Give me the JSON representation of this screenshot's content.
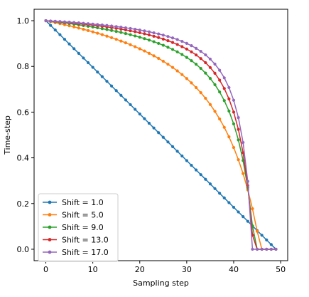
{
  "chart_data": {
    "type": "line",
    "title": "",
    "xlabel": "Sampling step",
    "ylabel": "Time-step",
    "xlim": [
      -2.5,
      51.5
    ],
    "ylim": [
      -0.05,
      1.05
    ],
    "x_ticks": [
      0,
      10,
      20,
      30,
      40,
      50
    ],
    "y_ticks": [
      0.0,
      0.2,
      0.4,
      0.6,
      0.8,
      1.0
    ],
    "x_tick_labels": [
      "0",
      "10",
      "20",
      "30",
      "40",
      "50"
    ],
    "y_tick_labels": [
      "0.0",
      "0.2",
      "0.4",
      "0.6",
      "0.8",
      "1.0"
    ],
    "grid": false,
    "legend_position": "lower-left",
    "x": [
      0,
      1,
      2,
      3,
      4,
      5,
      6,
      7,
      8,
      9,
      10,
      11,
      12,
      13,
      14,
      15,
      16,
      17,
      18,
      19,
      20,
      21,
      22,
      23,
      24,
      25,
      26,
      27,
      28,
      29,
      30,
      31,
      32,
      33,
      34,
      35,
      36,
      37,
      38,
      39,
      40,
      41,
      42,
      43,
      44,
      45,
      46,
      47,
      48,
      49
    ],
    "series": [
      {
        "name": "Shift = 1.0",
        "color": "#1f77b4",
        "values": [
          1.0,
          0.9796,
          0.9592,
          0.9388,
          0.9184,
          0.898,
          0.8776,
          0.8571,
          0.8367,
          0.8163,
          0.7959,
          0.7755,
          0.7551,
          0.7347,
          0.7143,
          0.6939,
          0.6735,
          0.6531,
          0.6327,
          0.6122,
          0.5918,
          0.5714,
          0.551,
          0.5306,
          0.5102,
          0.4898,
          0.4694,
          0.449,
          0.4286,
          0.4082,
          0.3878,
          0.3673,
          0.3469,
          0.3265,
          0.3061,
          0.2857,
          0.2653,
          0.2449,
          0.2245,
          0.2041,
          0.1837,
          0.1633,
          0.1429,
          0.1224,
          0.102,
          0.0816,
          0.0612,
          0.0408,
          0.0204,
          0.0
        ]
      },
      {
        "name": "Shift = 5.0",
        "color": "#ff7f0e",
        "values": [
          1.0,
          0.9959,
          0.9915,
          0.9871,
          0.9825,
          0.9778,
          0.9729,
          0.9677,
          0.9624,
          0.9569,
          0.9512,
          0.9452,
          0.9389,
          0.9324,
          0.9256,
          0.9185,
          0.911,
          0.9032,
          0.8949,
          0.8862,
          0.8771,
          0.8675,
          0.8572,
          0.8464,
          0.8349,
          0.8226,
          0.8095,
          0.7955,
          0.7805,
          0.7643,
          0.7469,
          0.7279,
          0.7073,
          0.6849,
          0.6604,
          0.6333,
          0.6034,
          0.5702,
          0.5333,
          0.4918,
          0.4451,
          0.3918,
          0.3309,
          0.2602,
          0.1774,
          0.0789,
          0.0,
          0.0,
          0.0,
          0.0
        ]
      },
      {
        "name": "Shift = 9.0",
        "color": "#2ca02c",
        "values": [
          1.0,
          0.9977,
          0.9953,
          0.9928,
          0.9902,
          0.9876,
          0.9848,
          0.9818,
          0.9788,
          0.9756,
          0.9723,
          0.9688,
          0.9652,
          0.9613,
          0.9573,
          0.9531,
          0.9486,
          0.9438,
          0.9388,
          0.9334,
          0.9277,
          0.9216,
          0.9151,
          0.9081,
          0.9006,
          0.8925,
          0.8837,
          0.8741,
          0.8636,
          0.8521,
          0.8393,
          0.8251,
          0.8092,
          0.7912,
          0.7708,
          0.7474,
          0.7202,
          0.6883,
          0.6503,
          0.6046,
          0.5484,
          0.4783,
          0.3883,
          0.2691,
          0.1021,
          0.0,
          0.0,
          0.0,
          0.0,
          0.0
        ]
      },
      {
        "name": "Shift = 13.0",
        "color": "#d62728",
        "values": [
          1.0,
          0.9984,
          0.9967,
          0.995,
          0.9932,
          0.9914,
          0.9894,
          0.9874,
          0.9852,
          0.983,
          0.9806,
          0.9781,
          0.9755,
          0.9727,
          0.9697,
          0.9666,
          0.9632,
          0.9597,
          0.9559,
          0.9518,
          0.9474,
          0.9427,
          0.9376,
          0.9321,
          0.9261,
          0.9196,
          0.9125,
          0.9047,
          0.896,
          0.8865,
          0.8758,
          0.8637,
          0.85,
          0.8344,
          0.8163,
          0.7951,
          0.77,
          0.7399,
          0.7032,
          0.6577,
          0.5999,
          0.5243,
          0.4223,
          0.2784,
          0.0616,
          0.0,
          0.0,
          0.0,
          0.0,
          0.0
        ]
      },
      {
        "name": "Shift = 17.0",
        "color": "#9467bd",
        "values": [
          1.0,
          0.9988,
          0.9975,
          0.9962,
          0.9948,
          0.9934,
          0.9919,
          0.9903,
          0.9887,
          0.987,
          0.9851,
          0.9832,
          0.9812,
          0.979,
          0.9767,
          0.9742,
          0.9716,
          0.9688,
          0.9658,
          0.9626,
          0.9591,
          0.9554,
          0.9513,
          0.9469,
          0.9421,
          0.9368,
          0.931,
          0.9246,
          0.9175,
          0.9096,
          0.9007,
          0.8906,
          0.8791,
          0.8659,
          0.8504,
          0.8321,
          0.8101,
          0.7833,
          0.7499,
          0.7074,
          0.6518,
          0.576,
          0.4671,
          0.2969,
          0.0,
          0.0,
          0.0,
          0.0,
          0.0,
          0.0
        ]
      }
    ]
  }
}
